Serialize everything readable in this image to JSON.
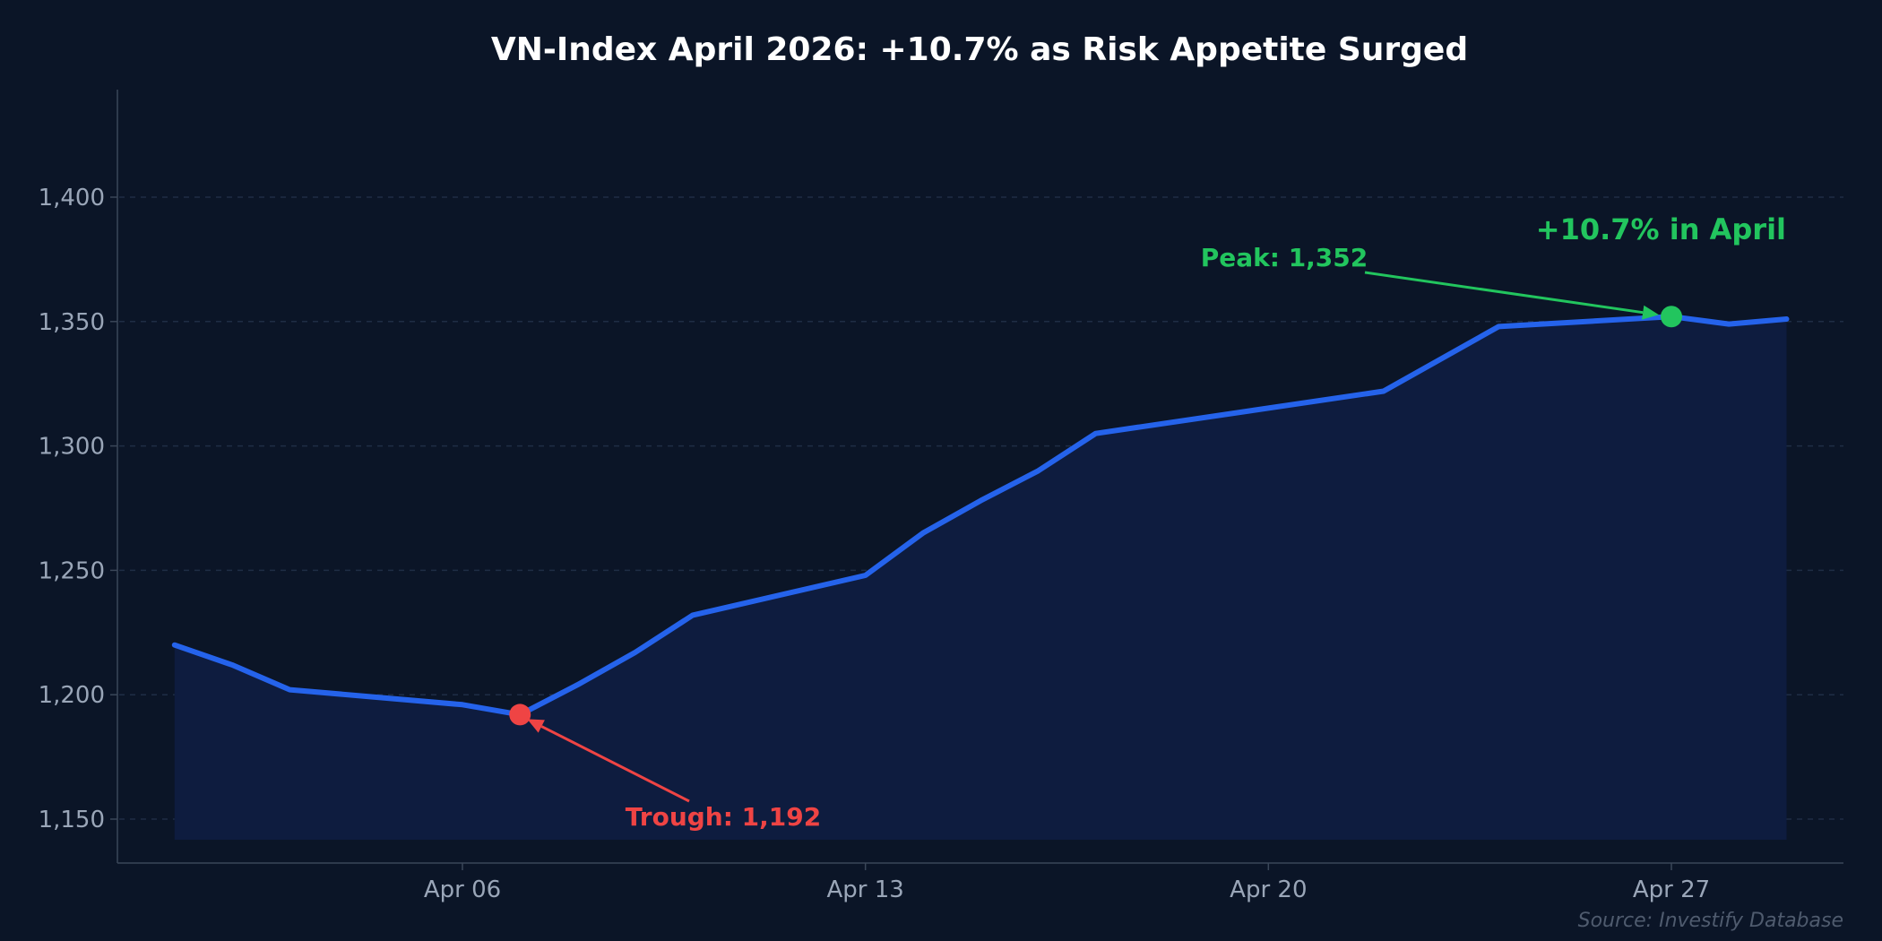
{
  "chart_data": {
    "type": "area",
    "title": "VN-Index April 2026: +10.7% as Risk Appetite Surged",
    "xlabel": "",
    "ylabel": "",
    "x_range": [
      "2026-03-31",
      "2026-04-30"
    ],
    "ylim": [
      1132,
      1442
    ],
    "grid": true,
    "x_ticks": [
      {
        "date": "2026-04-06",
        "label": "Apr 06"
      },
      {
        "date": "2026-04-13",
        "label": "Apr 13"
      },
      {
        "date": "2026-04-20",
        "label": "Apr 20"
      },
      {
        "date": "2026-04-27",
        "label": "Apr 27"
      }
    ],
    "y_ticks": [
      {
        "value": 1150,
        "label": "1,150"
      },
      {
        "value": 1200,
        "label": "1,200"
      },
      {
        "value": 1250,
        "label": "1,250"
      },
      {
        "value": 1300,
        "label": "1,300"
      },
      {
        "value": 1350,
        "label": "1,350"
      },
      {
        "value": 1400,
        "label": "1,400"
      }
    ],
    "series": [
      {
        "color": "#2563eb",
        "points": [
          {
            "x": "2026-04-01",
            "y": 1220
          },
          {
            "x": "2026-04-02",
            "y": 1212
          },
          {
            "x": "2026-04-03",
            "y": 1202
          },
          {
            "x": "2026-04-06",
            "y": 1196
          },
          {
            "x": "2026-04-07",
            "y": 1192
          },
          {
            "x": "2026-04-08",
            "y": 1204
          },
          {
            "x": "2026-04-09",
            "y": 1217
          },
          {
            "x": "2026-04-10",
            "y": 1232
          },
          {
            "x": "2026-04-13",
            "y": 1248
          },
          {
            "x": "2026-04-14",
            "y": 1265
          },
          {
            "x": "2026-04-15",
            "y": 1278
          },
          {
            "x": "2026-04-16",
            "y": 1290
          },
          {
            "x": "2026-04-17",
            "y": 1305
          },
          {
            "x": "2026-04-22",
            "y": 1322
          },
          {
            "x": "2026-04-24",
            "y": 1348
          },
          {
            "x": "2026-04-27",
            "y": 1352
          },
          {
            "x": "2026-04-28",
            "y": 1349
          },
          {
            "x": "2026-04-29",
            "y": 1351
          }
        ]
      }
    ],
    "annotations": {
      "peak": {
        "label": "Peak: 1,352",
        "x": "2026-04-27",
        "y": 1352,
        "color": "#22c55e"
      },
      "trough": {
        "label": "Trough: 1,192",
        "x": "2026-04-07",
        "y": 1192,
        "color": "#ef4444"
      },
      "change": {
        "label": "+10.7% in April",
        "color": "#22c55e"
      }
    },
    "source": "Source: Investify Database"
  },
  "colors": {
    "background": "#0b1527",
    "line": "#2563eb",
    "fill": "#0e1c3f",
    "grid": "#1f2d45",
    "axis": "#3b4759",
    "tick_text": "#9aa6b8"
  }
}
